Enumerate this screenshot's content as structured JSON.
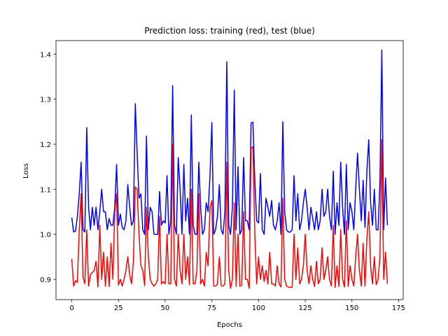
{
  "chart_data": {
    "type": "line",
    "title": "Prediction loss: training (red), test (blue)",
    "xlabel": "Epochs",
    "ylabel": "Loss",
    "x": [
      0,
      1,
      2,
      3,
      4,
      5,
      6,
      7,
      8,
      9,
      10,
      11,
      12,
      13,
      14,
      15,
      16,
      17,
      18,
      19,
      20,
      21,
      22,
      23,
      24,
      25,
      26,
      27,
      28,
      29,
      30,
      31,
      32,
      33,
      34,
      35,
      36,
      37,
      38,
      39,
      40,
      41,
      42,
      43,
      44,
      45,
      46,
      47,
      48,
      49,
      50,
      51,
      52,
      53,
      54,
      55,
      56,
      57,
      58,
      59,
      60,
      61,
      62,
      63,
      64,
      65,
      66,
      67,
      68,
      69,
      70,
      71,
      72,
      73,
      74,
      75,
      76,
      77,
      78,
      79,
      80,
      81,
      82,
      83,
      84,
      85,
      86,
      87,
      88,
      89,
      90,
      91,
      92,
      93,
      94,
      95,
      96,
      97,
      98,
      99,
      100,
      101,
      102,
      103,
      104,
      105,
      106,
      107,
      108,
      109,
      110,
      111,
      112,
      113,
      114,
      115,
      116,
      117,
      118,
      119,
      120,
      121,
      122,
      123,
      124,
      125,
      126,
      127,
      128,
      129,
      130,
      131,
      132,
      133,
      134,
      135,
      136,
      137,
      138,
      139,
      140,
      141,
      142,
      143,
      144,
      145,
      146,
      147,
      148,
      149,
      150,
      151,
      152,
      153,
      154,
      155,
      156,
      157,
      158,
      159,
      160,
      161,
      162,
      163,
      164,
      165,
      166,
      167,
      168,
      169
    ],
    "series": [
      {
        "color": "#0000ff",
        "values": [
          1.037,
          1.005,
          1.007,
          1.04,
          1.09,
          1.16,
          1.01,
          1.005,
          1.237,
          1.06,
          1.01,
          1.06,
          1.02,
          1.06,
          1.01,
          1.05,
          1.1,
          1.05,
          1.05,
          1.01,
          1.035,
          1.02,
          1.02,
          1.06,
          1.155,
          1.02,
          1.045,
          1.015,
          1.01,
          1.03,
          1.11,
          1.06,
          1.02,
          1.03,
          1.29,
          1.18,
          1.08,
          1.09,
          1.01,
          1.0,
          1.218,
          1.01,
          1.06,
          1.05,
          1.0,
          1.0,
          1.0,
          1.095,
          1.02,
          1.03,
          1.025,
          1.13,
          1.0,
          1.03,
          1.33,
          1.02,
          1.0,
          1.17,
          1.1,
          1.0,
          1.155,
          1.03,
          1.08,
          1.0,
          1.265,
          1.02,
          1.0,
          1.0,
          1.16,
          1.06,
          1.0,
          1.01,
          1.07,
          1.05,
          1.13,
          1.248,
          1.0,
          1.01,
          1.04,
          1.11,
          1.01,
          1.0,
          1.05,
          1.383,
          1.02,
          1.0,
          1.06,
          1.32,
          1.01,
          1.15,
          1.0,
          1.01,
          1.17,
          1.03,
          1.03,
          1.01,
          1.247,
          1.249,
          1.12,
          1.03,
          1.025,
          1.135,
          1.01,
          1.0,
          1.08,
          1.06,
          1.04,
          1.075,
          1.02,
          1.01,
          1.03,
          1.07,
          1.0,
          1.25,
          1.05,
          1.01,
          1.005,
          1.005,
          1.01,
          1.13,
          1.03,
          1.09,
          1.01,
          1.03,
          1.07,
          1.1,
          1.06,
          1.01,
          1.06,
          1.035,
          1.01,
          1.05,
          1.01,
          1.03,
          1.1,
          1.04,
          1.05,
          1.1,
          1.04,
          1.01,
          1.14,
          1.0,
          1.07,
          1.02,
          1.16,
          1.06,
          1.0,
          1.155,
          1.01,
          1.07,
          1.05,
          1.01,
          1.1,
          1.18,
          1.1,
          1.03,
          1.12,
          1.015,
          1.14,
          1.21,
          1.07,
          1.02,
          1.1,
          1.01,
          1.01,
          1.115,
          1.409,
          1.01,
          1.125,
          1.02
        ]
      },
      {
        "color": "#ff0000",
        "values": [
          0.945,
          0.885,
          0.897,
          0.893,
          1.01,
          1.09,
          0.905,
          0.89,
          1.01,
          0.885,
          0.91,
          0.915,
          0.92,
          0.94,
          0.883,
          1.02,
          0.9,
          0.96,
          0.885,
          0.95,
          0.884,
          0.98,
          0.9,
          1.05,
          1.09,
          0.887,
          0.9,
          0.885,
          0.9,
          0.92,
          0.95,
          0.91,
          0.89,
          0.94,
          1.105,
          1.1,
          1.0,
          0.93,
          0.92,
          0.886,
          1.06,
          0.95,
          0.9,
          0.89,
          0.885,
          0.89,
          0.9,
          1.04,
          0.89,
          0.895,
          0.89,
          1.0,
          0.89,
          0.89,
          1.2,
          0.9,
          0.885,
          1.0,
          0.92,
          0.89,
          1.0,
          0.9,
          0.95,
          0.888,
          1.1,
          0.89,
          0.89,
          0.92,
          1.09,
          0.89,
          0.9,
          0.885,
          0.96,
          0.93,
          1.06,
          1.075,
          0.885,
          0.885,
          0.89,
          0.95,
          0.886,
          0.885,
          0.89,
          1.16,
          0.92,
          0.88,
          0.9,
          1.07,
          0.884,
          1.0,
          0.885,
          0.886,
          1.05,
          0.9,
          0.9,
          0.88,
          1.19,
          1.195,
          1.0,
          0.89,
          0.95,
          0.9,
          0.93,
          0.895,
          0.92,
          0.89,
          0.96,
          0.89,
          0.89,
          0.885,
          0.93,
          0.89,
          0.883,
          1.08,
          0.9,
          0.885,
          0.883,
          0.882,
          0.883,
          1.0,
          0.9,
          0.97,
          0.89,
          0.9,
          0.93,
          1.0,
          0.92,
          0.89,
          0.93,
          0.9,
          0.884,
          0.94,
          0.89,
          0.9,
          0.97,
          0.9,
          0.92,
          0.95,
          0.9,
          0.885,
          1.02,
          0.882,
          0.93,
          0.884,
          1.01,
          0.9,
          0.883,
          1.03,
          0.884,
          0.93,
          0.9,
          0.885,
          0.95,
          1.0,
          0.92,
          0.885,
          0.98,
          0.885,
          0.99,
          1.05,
          0.93,
          0.89,
          0.95,
          0.888,
          0.9,
          0.95,
          1.21,
          0.9,
          0.96,
          0.89
        ]
      }
    ],
    "xlim": [
      -8.45,
      177.45
    ],
    "ylim": [
      0.855,
      1.43
    ],
    "xticks": [
      0,
      25,
      50,
      75,
      100,
      125,
      150,
      175
    ],
    "yticks": [
      0.9,
      {
        "value": 1,
        "label": "1.0"
      },
      1.1,
      1.2,
      1.3,
      1.4
    ]
  }
}
